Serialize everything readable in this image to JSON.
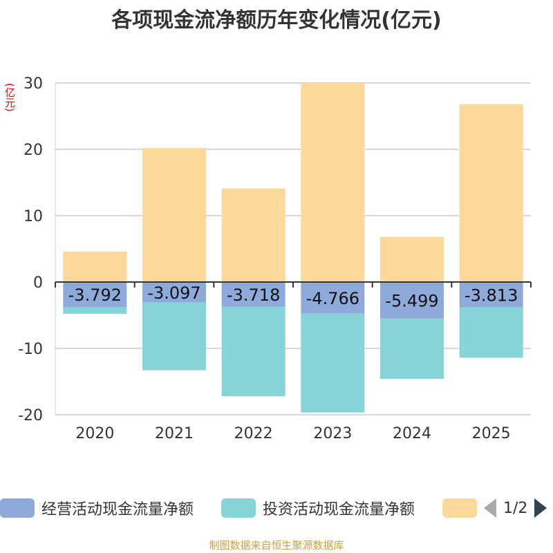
{
  "chart_data": {
    "type": "bar",
    "stacked": true,
    "title": "各项现金流净额历年变化情况(亿元)",
    "ylabel": "(亿元)",
    "xlabel": "",
    "categories": [
      "2020",
      "2021",
      "2022",
      "2023",
      "2024",
      "2025"
    ],
    "ylim": [
      -20,
      30
    ],
    "yticks": [
      30,
      20,
      10,
      0,
      -10,
      -20
    ],
    "series": [
      {
        "name": "经营活动现金流量净额",
        "color": "#8eaadb",
        "values": [
          -3.792,
          -3.097,
          -3.718,
          -4.766,
          -5.499,
          -3.813
        ],
        "data_labels": [
          "-3.792",
          "-3.097",
          "-3.718",
          "-4.766",
          "-5.499",
          "-3.813"
        ]
      },
      {
        "name": "投资活动现金流量净额",
        "color": "#86d4d8",
        "values": [
          -1.0,
          -10.2,
          -13.5,
          -14.9,
          -9.1,
          -7.6
        ]
      },
      {
        "name": "",
        "color": "#fdd89b",
        "values": [
          4.6,
          20.2,
          14.1,
          30.0,
          6.8,
          26.8
        ]
      }
    ],
    "legend_position": "bottom"
  },
  "legend": {
    "items": [
      {
        "label": "经营活动现金流量净额",
        "color": "#8eaadb"
      },
      {
        "label": "投资活动现金流量净额",
        "color": "#86d4d8"
      },
      {
        "label": "",
        "color": "#fdd89b"
      }
    ],
    "page": "1/2"
  },
  "colors": {
    "unit": "#ee0000",
    "source": "#c8a046",
    "grid": "#cccccc",
    "axis": "#333333"
  },
  "source": "制图数据来自恒生聚源数据库"
}
